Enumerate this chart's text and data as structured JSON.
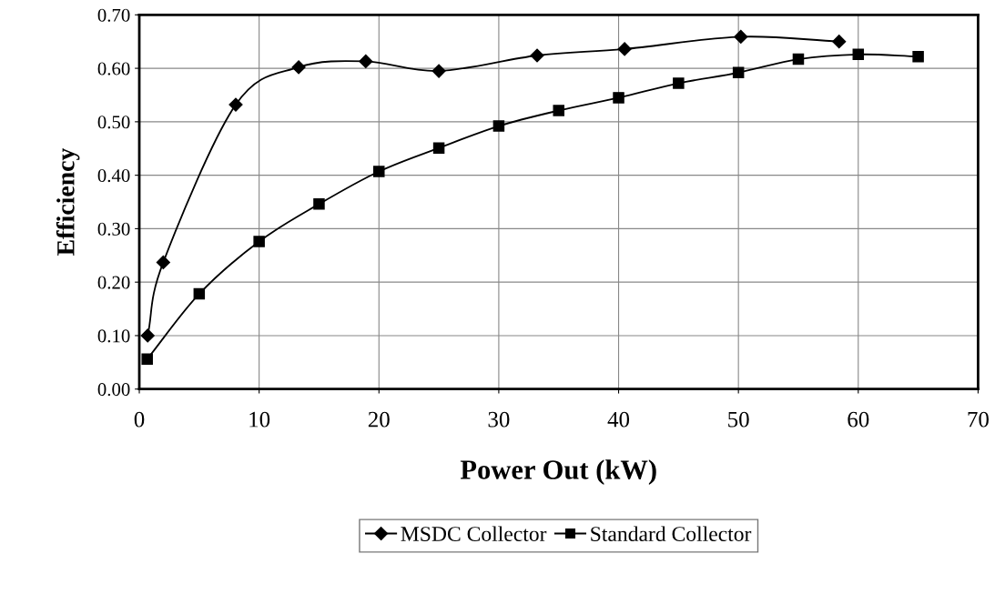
{
  "chart_data": {
    "type": "line",
    "xlabel": "Power Out (kW)",
    "ylabel": "Efficiency",
    "series": [
      {
        "name": "MSDC Collector",
        "color": "#000000",
        "marker": "diamond",
        "x": [
          0.7,
          2.0,
          8.05,
          13.3,
          18.9,
          25.0,
          33.2,
          40.5,
          50.2,
          58.4
        ],
        "values": [
          0.1,
          0.237,
          0.532,
          0.602,
          0.613,
          0.595,
          0.624,
          0.636,
          0.659,
          0.65
        ]
      },
      {
        "name": "Standard Collector",
        "color": "#000000",
        "marker": "square",
        "x": [
          0.66,
          5,
          10,
          15,
          20,
          25,
          30,
          35,
          40,
          45,
          50,
          55,
          60,
          65
        ],
        "values": [
          0.056,
          0.178,
          0.276,
          0.346,
          0.407,
          0.451,
          0.492,
          0.521,
          0.545,
          0.572,
          0.592,
          0.617,
          0.626,
          0.622
        ]
      }
    ],
    "xlim": [
      0,
      70
    ],
    "xticks": [
      0,
      10,
      20,
      30,
      40,
      50,
      60,
      70
    ],
    "ylim": [
      0,
      0.7
    ],
    "yticks": [
      {
        "value": 0,
        "label": "0.00"
      },
      {
        "value": 0.1,
        "label": "0.10"
      },
      {
        "value": 0.2,
        "label": "0.20"
      },
      {
        "value": 0.3,
        "label": "0.30"
      },
      {
        "value": 0.4,
        "label": "0.40"
      },
      {
        "value": 0.5,
        "label": "0.50"
      },
      {
        "value": 0.6,
        "label": "0.60"
      },
      {
        "value": 0.7,
        "label": "0.70"
      }
    ],
    "grid": true,
    "legend": "bottom",
    "line_style": "solid"
  }
}
